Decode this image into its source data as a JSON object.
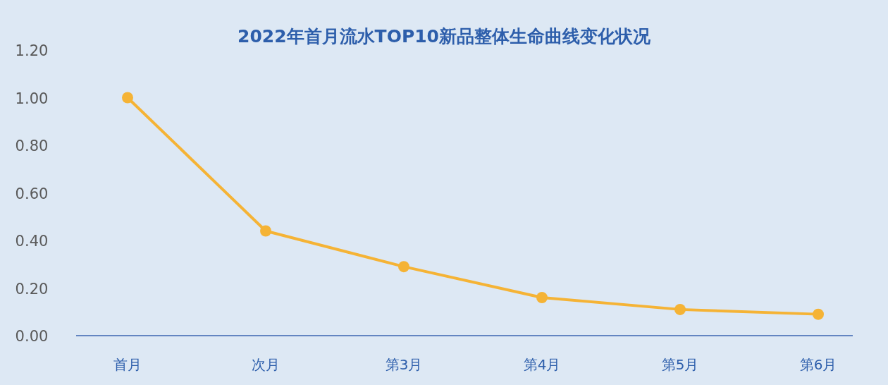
{
  "chart_data": {
    "type": "line",
    "title": "2022年首月流水TOP10新品整体生命曲线变化状况",
    "categories": [
      "首月",
      "次月",
      "第3月",
      "第4月",
      "第5月",
      "第6月"
    ],
    "values": [
      1.0,
      0.44,
      0.29,
      0.16,
      0.11,
      0.09
    ],
    "color": "#f5b335",
    "marker": "circle",
    "ylim": [
      0,
      1.2
    ],
    "yticks": [
      {
        "value": 0,
        "label": "0.00"
      },
      {
        "value": 0.2,
        "label": "0.20"
      },
      {
        "value": 0.4,
        "label": "0.40"
      },
      {
        "value": 0.6,
        "label": "0.60"
      },
      {
        "value": 0.8,
        "label": "0.80"
      },
      {
        "value": 1.0,
        "label": "1.00"
      },
      {
        "value": 1.2,
        "label": "1.20"
      }
    ]
  }
}
